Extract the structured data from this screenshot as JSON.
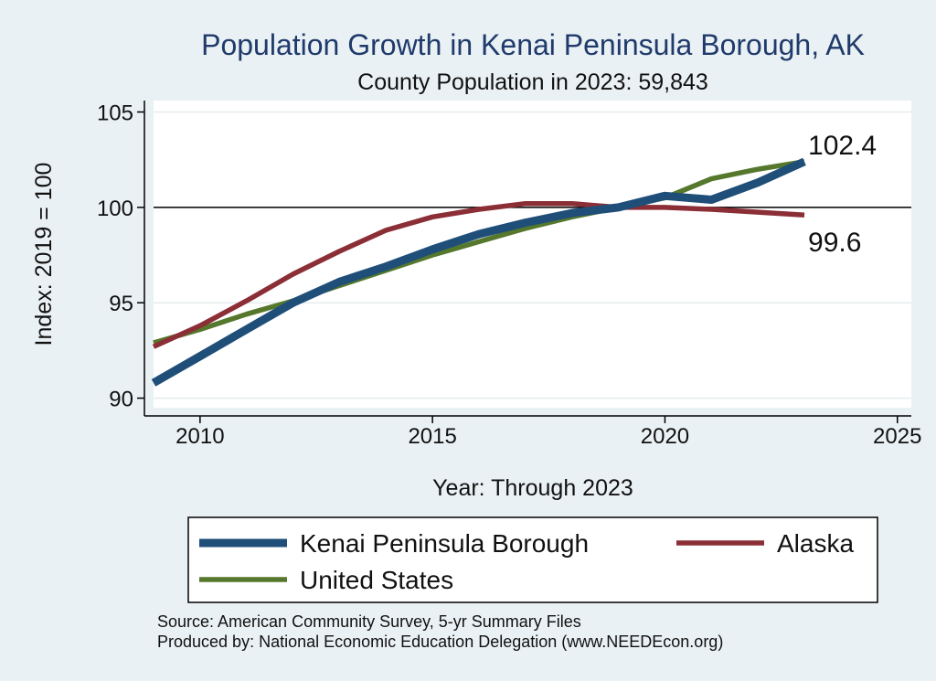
{
  "chart_data": {
    "type": "line",
    "title": "Population Growth in Kenai Peninsula Borough, AK",
    "subtitle": "County Population in 2023: 59,843",
    "xlabel": "Year: Through 2023",
    "ylabel": "Index: 2019 = 100",
    "xlim": [
      2009,
      2025.3
    ],
    "ylim": [
      89.5,
      105.6
    ],
    "xticks": [
      2010,
      2015,
      2020,
      2025
    ],
    "yticks": [
      90,
      95,
      100,
      105
    ],
    "reference_line": 100,
    "x": [
      2009,
      2010,
      2011,
      2012,
      2013,
      2014,
      2015,
      2016,
      2017,
      2018,
      2019,
      2020,
      2021,
      2022,
      2023
    ],
    "series": [
      {
        "name": "Kenai Peninsula Borough",
        "color": "#1f4e79",
        "values": [
          90.8,
          92.2,
          93.6,
          95.0,
          96.1,
          96.9,
          97.8,
          98.6,
          99.2,
          99.7,
          100.0,
          100.6,
          100.4,
          101.3,
          102.4
        ]
      },
      {
        "name": "Alaska",
        "color": "#8b2e36",
        "values": [
          92.7,
          93.8,
          95.1,
          96.5,
          97.7,
          98.8,
          99.5,
          99.9,
          100.2,
          100.2,
          100.0,
          100.0,
          99.9,
          99.75,
          99.6
        ]
      },
      {
        "name": "United States",
        "color": "#55782c",
        "values": [
          92.9,
          93.6,
          94.4,
          95.1,
          95.9,
          96.7,
          97.5,
          98.2,
          98.9,
          99.5,
          100.0,
          100.5,
          101.5,
          102.0,
          102.4
        ]
      }
    ],
    "end_labels": [
      {
        "series": "Kenai Peninsula Borough",
        "text": "102.4"
      },
      {
        "series": "Alaska",
        "text": "99.6"
      }
    ],
    "legend": {
      "placement": "bottom",
      "entries": [
        "Kenai Peninsula Borough",
        "Alaska",
        "United States"
      ]
    },
    "notes": [
      "Source: American Community Survey, 5-yr Summary Files",
      "Produced by: National Economic Education Delegation (www.NEEDEcon.org)"
    ]
  }
}
